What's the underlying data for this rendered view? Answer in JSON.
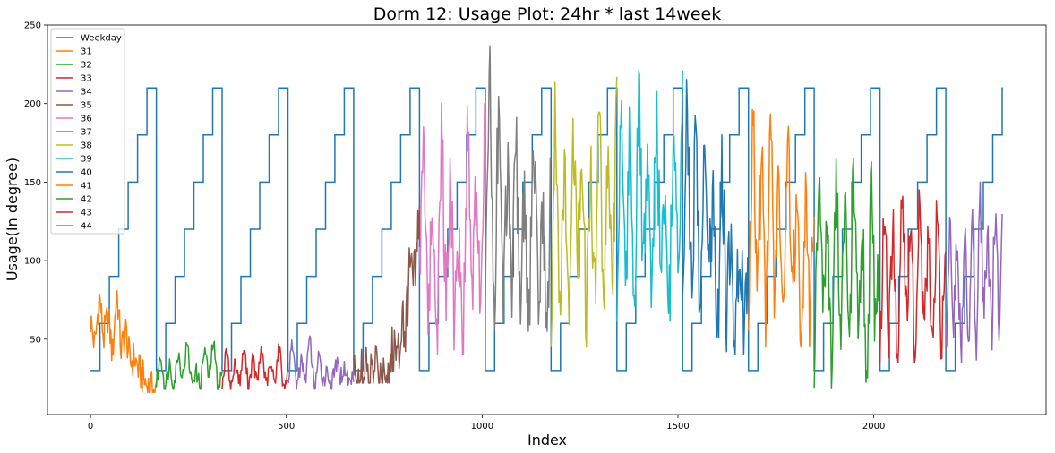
{
  "chart_data": {
    "type": "line",
    "title": "Dorm 12: Usage Plot: 24hr * last 14week",
    "xlabel": "Index",
    "ylabel": "Usage(In degree)",
    "xlim": [
      -110,
      2440
    ],
    "ylim": [
      2,
      250
    ],
    "xticks": [
      0,
      500,
      1000,
      1500,
      2000
    ],
    "yticks": [
      50,
      100,
      150,
      200,
      250
    ],
    "grid": false,
    "legend_position": "upper-left",
    "weekday": {
      "name": "Weekday",
      "color": "#1f77b4",
      "period": 168,
      "day_length": 24,
      "start": 0,
      "end": 2330,
      "levels": [
        60,
        90,
        120,
        150,
        180,
        210,
        30
      ],
      "first_day_level": 30
    },
    "series": [
      {
        "name": "31",
        "color": "#ff7f0e",
        "x_start": 0,
        "x_end": 168,
        "values": [
          62,
          45,
          78,
          50,
          66,
          40,
          82,
          42,
          56,
          35,
          38,
          30,
          25,
          20,
          18,
          16
        ]
      },
      {
        "name": "32",
        "color": "#2ca02c",
        "x_start": 168,
        "x_end": 336,
        "values": [
          22,
          40,
          18,
          35,
          20,
          42,
          25,
          48,
          22,
          30,
          19,
          45,
          24,
          50,
          20,
          28
        ]
      },
      {
        "name": "33",
        "color": "#d62728",
        "x_start": 336,
        "x_end": 504,
        "values": [
          20,
          44,
          18,
          36,
          22,
          45,
          19,
          38,
          21,
          46,
          20,
          33,
          23,
          47,
          18,
          30
        ]
      },
      {
        "name": "34",
        "color": "#9467bd",
        "x_start": 504,
        "x_end": 672,
        "values": [
          22,
          48,
          20,
          36,
          25,
          52,
          18,
          38,
          24,
          30,
          20,
          35,
          26,
          32,
          22,
          28
        ]
      },
      {
        "name": "35",
        "color": "#8c564b",
        "x_start": 672,
        "x_end": 840,
        "values": [
          24,
          35,
          22,
          30,
          26,
          33,
          24,
          38,
          28,
          45,
          40,
          68,
          60,
          110,
          95,
          135
        ]
      },
      {
        "name": "36",
        "color": "#e377c2",
        "x_start": 840,
        "x_end": 1008,
        "values": [
          95,
          180,
          60,
          140,
          40,
          195,
          70,
          165,
          55,
          120,
          45,
          195,
          75,
          150,
          60,
          200
        ]
      },
      {
        "name": "37",
        "color": "#7f7f7f",
        "x_start": 1008,
        "x_end": 1176,
        "values": [
          55,
          238,
          60,
          200,
          70,
          160,
          65,
          175,
          75,
          140,
          60,
          180,
          70,
          130,
          62,
          150
        ]
      },
      {
        "name": "38",
        "color": "#bcbd22",
        "x_start": 1176,
        "x_end": 1344,
        "values": [
          45,
          210,
          70,
          170,
          55,
          200,
          85,
          190,
          60,
          160,
          75,
          208,
          65,
          180,
          70,
          217
        ]
      },
      {
        "name": "39",
        "color": "#17becf",
        "x_start": 1344,
        "x_end": 1512,
        "values": [
          60,
          215,
          80,
          190,
          70,
          218,
          85,
          170,
          65,
          200,
          90,
          160,
          70,
          210,
          75,
          221
        ]
      },
      {
        "name": "40",
        "color": "#1f77b4",
        "x_start": 1512,
        "x_end": 1680,
        "values": [
          50,
          218,
          80,
          180,
          60,
          175,
          90,
          150,
          55,
          160,
          70,
          130,
          40,
          120,
          50,
          90
        ]
      },
      {
        "name": "41",
        "color": "#ff7f0e",
        "x_start": 1680,
        "x_end": 1848,
        "values": [
          60,
          210,
          80,
          170,
          45,
          205,
          70,
          150,
          60,
          180,
          75,
          140,
          55,
          130,
          65,
          120
        ]
      },
      {
        "name": "42",
        "color": "#2ca02c",
        "x_start": 1848,
        "x_end": 2016,
        "values": [
          40,
          160,
          60,
          130,
          35,
          165,
          55,
          140,
          45,
          162,
          50,
          120,
          19,
          150,
          45,
          125
        ]
      },
      {
        "name": "43",
        "color": "#d62728",
        "x_start": 2016,
        "x_end": 2184,
        "values": [
          40,
          140,
          55,
          125,
          35,
          145,
          60,
          120,
          40,
          143,
          50,
          115,
          38,
          140,
          45,
          125
        ]
      },
      {
        "name": "44",
        "color": "#9467bd",
        "x_start": 2184,
        "x_end": 2330,
        "values": [
          45,
          120,
          55,
          110,
          35,
          130,
          50,
          115,
          45,
          150,
          60,
          125,
          50,
          140,
          55,
          135
        ]
      }
    ]
  }
}
